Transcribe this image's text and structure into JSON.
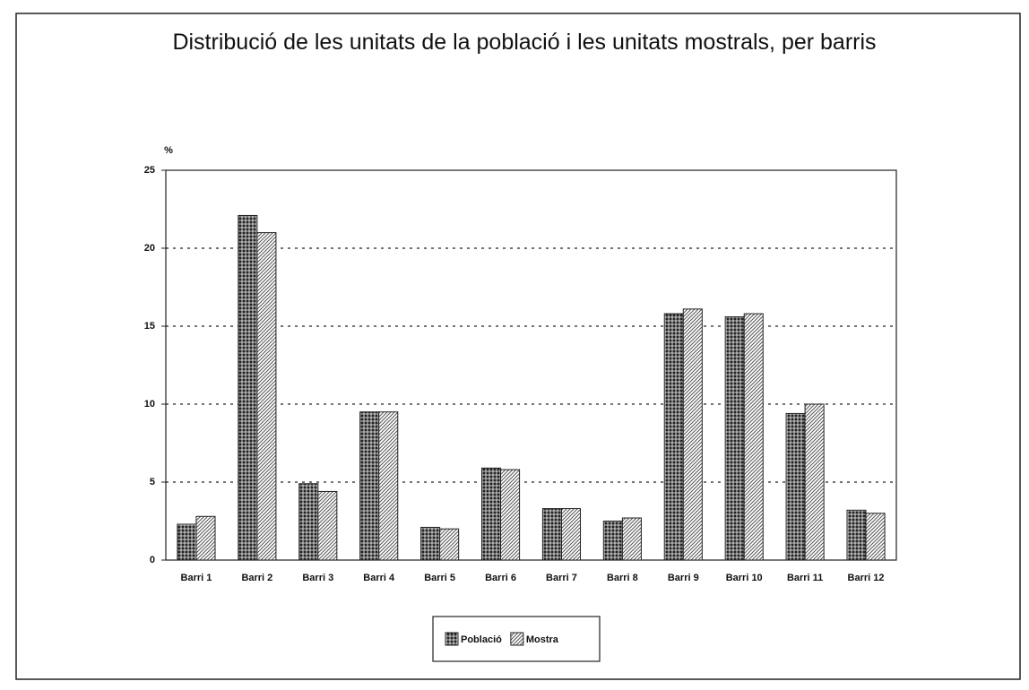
{
  "chart_data": {
    "type": "bar",
    "title": "Distribució de les unitats de la població i les unitats mostrals, per barris",
    "y_label": "%",
    "categories": [
      "Barri 1",
      "Barri 2",
      "Barri 3",
      "Barri 4",
      "Barri 5",
      "Barri 6",
      "Barri 7",
      "Barri 8",
      "Barri 9",
      "Barri 10",
      "Barri 11",
      "Barri 12"
    ],
    "series": [
      {
        "name": "Població",
        "color": "#222222",
        "values": [
          2.3,
          22.1,
          4.9,
          9.5,
          2.1,
          5.9,
          3.3,
          2.5,
          15.8,
          15.6,
          9.4,
          3.2
        ]
      },
      {
        "name": "Mostra",
        "color": "#555555",
        "values": [
          2.8,
          21.0,
          4.4,
          9.5,
          2.0,
          5.8,
          3.3,
          2.7,
          16.1,
          15.8,
          10.0,
          3.0
        ]
      }
    ],
    "ylim": [
      0,
      25
    ],
    "yticks": [
      0,
      5,
      10,
      15,
      20,
      25
    ],
    "grid": true,
    "legend": "bottom"
  }
}
